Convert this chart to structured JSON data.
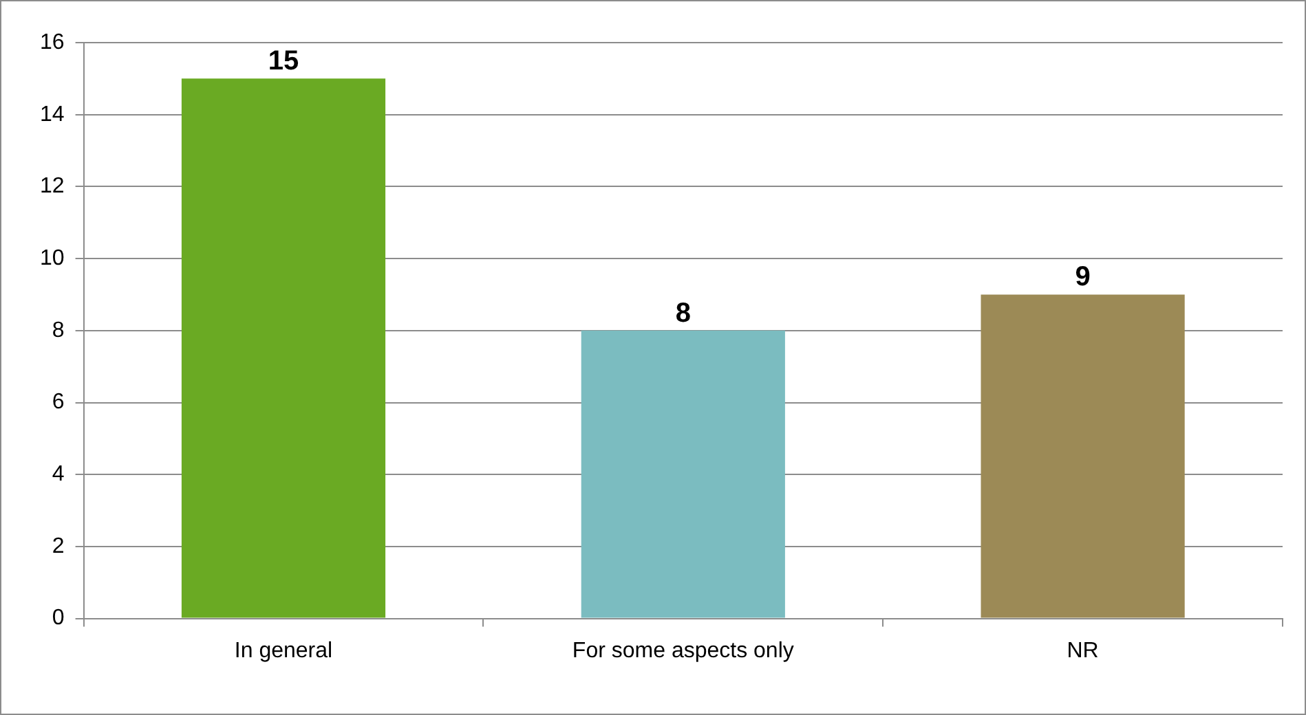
{
  "chart_data": {
    "type": "bar",
    "categories": [
      "In general",
      "For some aspects only",
      "NR"
    ],
    "values": [
      15,
      8,
      9
    ],
    "colors": [
      "#6aaa23",
      "#7bbcc0",
      "#9c8a56"
    ],
    "ylim": [
      0,
      16
    ],
    "yticks": [
      0,
      2,
      4,
      6,
      8,
      10,
      12,
      14,
      16
    ],
    "grid": "y",
    "legend": false,
    "data_labels": true
  }
}
